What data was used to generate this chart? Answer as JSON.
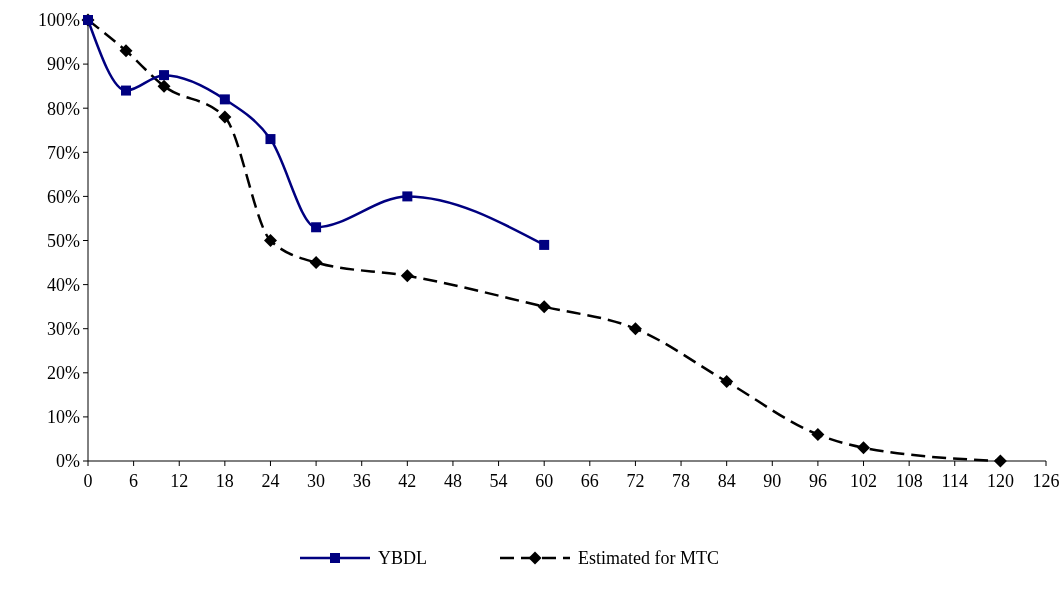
{
  "chart_data": {
    "type": "line",
    "xlim": [
      0,
      126
    ],
    "xticks": [
      0,
      6,
      12,
      18,
      24,
      30,
      36,
      42,
      48,
      54,
      60,
      66,
      72,
      78,
      84,
      90,
      96,
      102,
      108,
      114,
      120,
      126
    ],
    "ylim": [
      0,
      100
    ],
    "yticks": [
      {
        "value": 0,
        "label": "0%"
      },
      {
        "value": 10,
        "label": "10%"
      },
      {
        "value": 20,
        "label": "20%"
      },
      {
        "value": 30,
        "label": "30%"
      },
      {
        "value": 40,
        "label": "40%"
      },
      {
        "value": 50,
        "label": "50%"
      },
      {
        "value": 60,
        "label": "60%"
      },
      {
        "value": 70,
        "label": "70%"
      },
      {
        "value": 80,
        "label": "80%"
      },
      {
        "value": 90,
        "label": "90%"
      },
      {
        "value": 100,
        "label": "100%"
      }
    ],
    "grid": false,
    "legend": "bottom",
    "series": [
      {
        "name": "YBDL",
        "color": "#000080",
        "marker": "square",
        "line_style": "solid",
        "x": [
          0,
          5,
          10,
          18,
          24,
          30,
          42,
          60
        ],
        "values": [
          100,
          84,
          87.5,
          82,
          73,
          53,
          60,
          49
        ]
      },
      {
        "name": "Estimated for MTC",
        "color": "#000000",
        "marker": "diamond",
        "line_style": "dashed",
        "x": [
          0,
          5,
          10,
          18,
          24,
          30,
          42,
          60,
          72,
          84,
          96,
          102,
          120
        ],
        "values": [
          100,
          93,
          85,
          78,
          50,
          45,
          42,
          35,
          30,
          18,
          6,
          3,
          0
        ]
      }
    ]
  }
}
